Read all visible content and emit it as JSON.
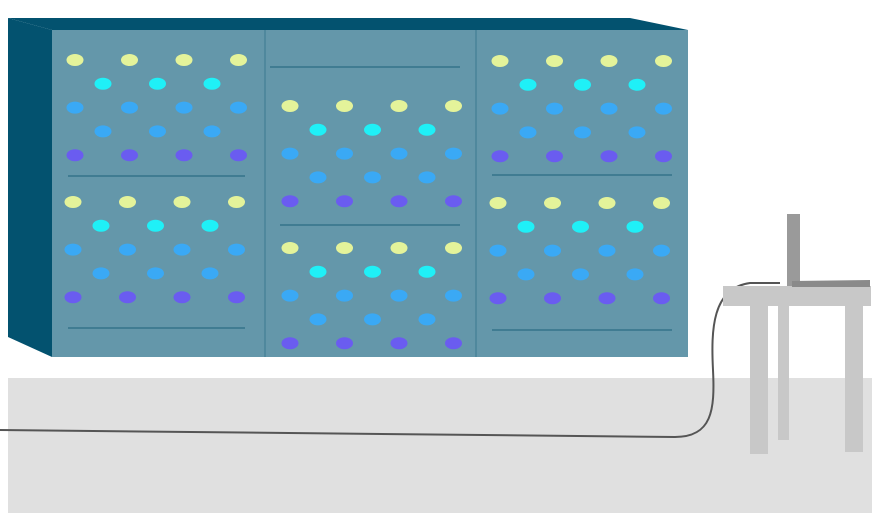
{
  "colors": {
    "background": "#ffffff",
    "floor": "#e0e0e0",
    "cabinet_front": "#6497aa",
    "cabinet_side": "#03526f",
    "cabinet_top": "#03526f",
    "panel_divider": "#3a7890",
    "shelf_line": "#1d6079",
    "table": "#c8c8c8",
    "laptop": "#9a9a9a",
    "laptop_base": "#8a8a8a",
    "cable": "#555555"
  },
  "lights": {
    "row_colors": [
      "#e4f39a",
      "#1ff0f7",
      "#3aa9f5",
      "#3aa9f5",
      "#6a5cf0"
    ],
    "row_names": [
      "status-light-yellow",
      "status-light-cyan",
      "status-light-blue",
      "status-light-blue",
      "status-light-violet"
    ]
  },
  "cabinet": {
    "columns": 3,
    "sections_per_column": 2
  }
}
